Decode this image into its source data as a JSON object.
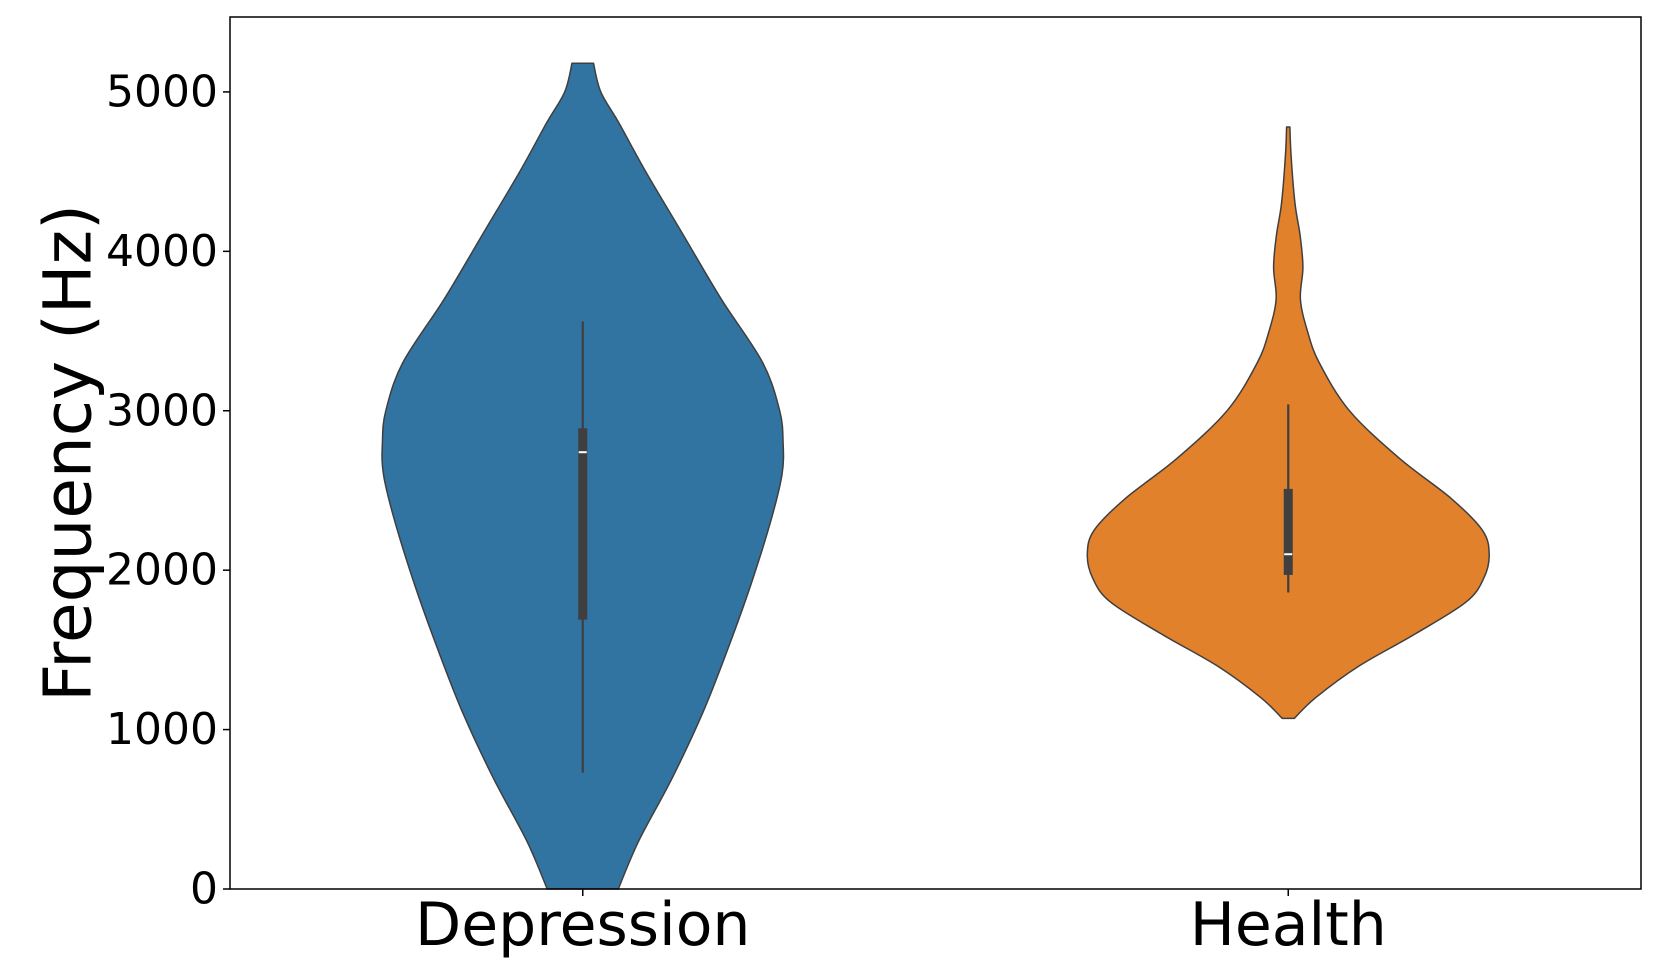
{
  "chart_data": {
    "type": "violin",
    "title": "",
    "xlabel": "",
    "ylabel": "Frequency (Hz)",
    "ylim": [
      0,
      5470
    ],
    "yticks": [
      0,
      1000,
      2000,
      3000,
      4000,
      5000
    ],
    "ytick_labels": [
      "0",
      "1000",
      "2000",
      "3000",
      "4000",
      "5000"
    ],
    "categories": [
      "Depression",
      "Health"
    ],
    "grid": false,
    "legend": "none",
    "series": [
      {
        "category": "Depression",
        "color": "#3274a1",
        "min": 0,
        "max": 5180,
        "whisker_low": 730,
        "q1": 1690,
        "median": 2740,
        "q3": 2890,
        "whisker_high": 3560,
        "density_profile": [
          [
            0,
            0.126
          ],
          [
            300,
            0.198
          ],
          [
            700,
            0.318
          ],
          [
            1100,
            0.424
          ],
          [
            1500,
            0.513
          ],
          [
            1900,
            0.594
          ],
          [
            2300,
            0.665
          ],
          [
            2600,
            0.706
          ],
          [
            2800,
            0.71
          ],
          [
            3000,
            0.698
          ],
          [
            3300,
            0.638
          ],
          [
            3700,
            0.491
          ],
          [
            4100,
            0.357
          ],
          [
            4500,
            0.223
          ],
          [
            4800,
            0.13
          ],
          [
            5000,
            0.064
          ],
          [
            5180,
            0.038
          ]
        ]
      },
      {
        "category": "Health",
        "color": "#e1812c",
        "min": 1070,
        "max": 4780,
        "whisker_low": 1860,
        "q1": 1970,
        "median": 2100,
        "q3": 2510,
        "whisker_high": 3040,
        "density_profile": [
          [
            1070,
            0.021
          ],
          [
            1200,
            0.097
          ],
          [
            1400,
            0.252
          ],
          [
            1600,
            0.45
          ],
          [
            1800,
            0.63
          ],
          [
            1950,
            0.693
          ],
          [
            2100,
            0.712
          ],
          [
            2250,
            0.688
          ],
          [
            2450,
            0.577
          ],
          [
            2700,
            0.395
          ],
          [
            3000,
            0.217
          ],
          [
            3300,
            0.11
          ],
          [
            3500,
            0.068
          ],
          [
            3700,
            0.043
          ],
          [
            3900,
            0.052
          ],
          [
            4100,
            0.042
          ],
          [
            4300,
            0.024
          ],
          [
            4600,
            0.01
          ],
          [
            4780,
            0.006
          ]
        ]
      }
    ]
  }
}
